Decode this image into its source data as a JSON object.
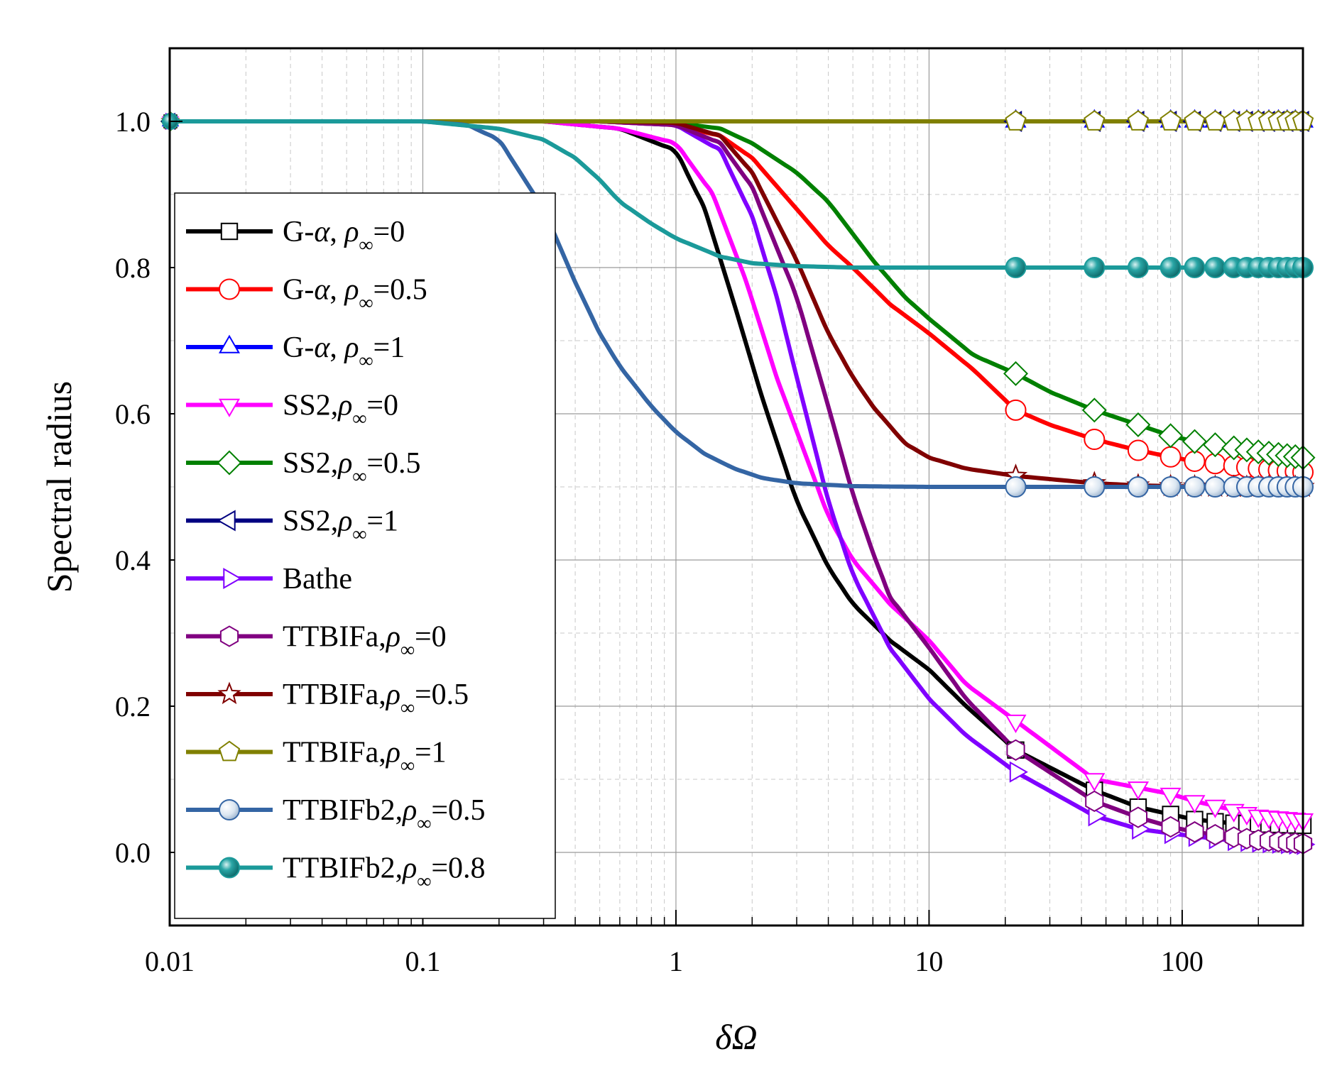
{
  "chart_data": {
    "type": "line",
    "xscale": "log",
    "xlim": [
      0.01,
      300
    ],
    "ylim": [
      -0.1,
      1.1
    ],
    "xlabel": "δΩ",
    "ylabel": "Spectral radius",
    "grid": true,
    "legend_position": "left",
    "xticks": [
      {
        "value": 0.01,
        "label": "0.01"
      },
      {
        "value": 0.1,
        "label": "0.1"
      },
      {
        "value": 1,
        "label": "1"
      },
      {
        "value": 10,
        "label": "10"
      },
      {
        "value": 100,
        "label": "100"
      }
    ],
    "yticks": [
      {
        "value": 0.0,
        "label": "0.0"
      },
      {
        "value": 0.2,
        "label": "0.2"
      },
      {
        "value": 0.4,
        "label": "0.4"
      },
      {
        "value": 0.6,
        "label": "0.6"
      },
      {
        "value": 0.8,
        "label": "0.8"
      },
      {
        "value": 1.0,
        "label": "1.0"
      }
    ],
    "series": [
      {
        "name": "G-α, ρ∞=0",
        "prefix": "G-",
        "greek": "α",
        "sep": ", ",
        "rinf": "0",
        "color": "#000000",
        "marker": "square",
        "x": [
          0.01,
          0.1,
          0.3,
          0.6,
          1,
          1.3,
          1.7,
          2.2,
          3,
          4,
          5,
          7,
          10,
          14,
          22,
          45,
          67,
          90,
          112,
          135,
          160,
          200,
          250,
          300
        ],
        "y": [
          1.0,
          1.0,
          1.0,
          0.99,
          0.96,
          0.88,
          0.75,
          0.62,
          0.48,
          0.39,
          0.34,
          0.29,
          0.25,
          0.2,
          0.14,
          0.085,
          0.062,
          0.052,
          0.045,
          0.042,
          0.04,
          0.039,
          0.038,
          0.037
        ]
      },
      {
        "name": "G-α, ρ∞=0.5",
        "prefix": "G-",
        "greek": "α",
        "sep": ", ",
        "rinf": "0.5",
        "color": "#ff0000",
        "marker": "circle",
        "x": [
          0.01,
          0.1,
          0.5,
          1,
          1.5,
          2,
          3,
          4,
          5,
          7,
          10,
          15,
          22,
          30,
          45,
          67,
          90,
          112,
          150,
          200,
          300
        ],
        "y": [
          1.0,
          1.0,
          1.0,
          0.995,
          0.98,
          0.95,
          0.88,
          0.83,
          0.8,
          0.75,
          0.71,
          0.66,
          0.605,
          0.585,
          0.565,
          0.55,
          0.541,
          0.535,
          0.53,
          0.525,
          0.52
        ]
      },
      {
        "name": "G-α, ρ∞=1",
        "prefix": "G-",
        "greek": "α",
        "sep": ", ",
        "rinf": "1",
        "color": "#0000ff",
        "marker": "triangle-up",
        "x": [
          0.01,
          22,
          45,
          67,
          90,
          112,
          135,
          160,
          180,
          200,
          220,
          240,
          260,
          280,
          300
        ],
        "y": [
          1.0,
          1.0,
          1.0,
          1.0,
          1.0,
          1.0,
          1.0,
          1.0,
          1.0,
          1.0,
          1.0,
          1.0,
          1.0,
          1.0,
          1.0
        ]
      },
      {
        "name": "SS2,ρ∞=0",
        "prefix": "SS2,",
        "greek": "",
        "sep": "",
        "rinf": "0",
        "color": "#ff00ff",
        "marker": "triangle-down",
        "x": [
          0.01,
          0.1,
          0.3,
          0.6,
          1,
          1.4,
          1.9,
          2.5,
          3.2,
          4,
          5,
          7,
          10,
          14,
          22,
          45,
          90,
          112,
          150,
          200,
          300
        ],
        "y": [
          1.0,
          1.0,
          1.0,
          0.99,
          0.97,
          0.9,
          0.78,
          0.65,
          0.55,
          0.46,
          0.4,
          0.34,
          0.29,
          0.23,
          0.18,
          0.1,
          0.08,
          0.07,
          0.06,
          0.05,
          0.045
        ]
      },
      {
        "name": "SS2,ρ∞=0.5",
        "prefix": "SS2,",
        "greek": "",
        "sep": "",
        "rinf": "0.5",
        "color": "#008000",
        "marker": "diamond",
        "x": [
          0.01,
          0.1,
          0.5,
          1,
          1.5,
          2,
          3,
          4,
          6,
          8,
          10,
          15,
          22,
          30,
          45,
          67,
          90,
          112,
          150,
          200,
          300
        ],
        "y": [
          1.0,
          1.0,
          1.0,
          0.998,
          0.99,
          0.97,
          0.93,
          0.89,
          0.81,
          0.76,
          0.73,
          0.68,
          0.655,
          0.63,
          0.605,
          0.585,
          0.57,
          0.562,
          0.555,
          0.548,
          0.54
        ]
      },
      {
        "name": "SS2,ρ∞=1",
        "prefix": "SS2,",
        "greek": "",
        "sep": "",
        "rinf": "1",
        "color": "#000080",
        "marker": "triangle-left",
        "x": [
          0.01,
          22,
          45,
          67,
          90,
          112,
          135,
          160,
          180,
          200,
          220,
          240,
          260,
          280,
          300
        ],
        "y": [
          1.0,
          1.0,
          1.0,
          1.0,
          1.0,
          1.0,
          1.0,
          1.0,
          1.0,
          1.0,
          1.0,
          1.0,
          1.0,
          1.0,
          1.0
        ]
      },
      {
        "name": "Bathe",
        "prefix": "Bathe",
        "greek": "",
        "sep": "",
        "rinf": "",
        "color": "#8000ff",
        "marker": "triangle-right",
        "x": [
          0.01,
          0.1,
          0.5,
          1,
          1.5,
          2,
          2.5,
          3,
          3.5,
          4,
          5,
          7,
          10,
          14,
          22,
          45,
          67,
          90,
          112,
          150,
          200,
          300
        ],
        "y": [
          1.0,
          1.0,
          1.0,
          0.995,
          0.96,
          0.87,
          0.76,
          0.65,
          0.56,
          0.48,
          0.38,
          0.28,
          0.21,
          0.16,
          0.11,
          0.05,
          0.032,
          0.026,
          0.022,
          0.017,
          0.014,
          0.011
        ]
      },
      {
        "name": "TTBIFa,ρ∞=0",
        "prefix": "TTBIFa,",
        "greek": "",
        "sep": "",
        "rinf": "0",
        "color": "#800080",
        "marker": "hexagon",
        "x": [
          0.01,
          0.1,
          0.5,
          1,
          1.5,
          2,
          3,
          4,
          5,
          6,
          7,
          10,
          14,
          22,
          45,
          67,
          90,
          112,
          150,
          200,
          300
        ],
        "y": [
          1.0,
          1.0,
          1.0,
          0.995,
          0.97,
          0.91,
          0.76,
          0.61,
          0.49,
          0.41,
          0.35,
          0.28,
          0.21,
          0.14,
          0.07,
          0.048,
          0.035,
          0.028,
          0.022,
          0.017,
          0.012
        ]
      },
      {
        "name": "TTBIFa,ρ∞=0.5",
        "prefix": "TTBIFa,",
        "greek": "",
        "sep": "",
        "rinf": "0.5",
        "color": "#800000",
        "marker": "star",
        "x": [
          0.01,
          0.1,
          0.5,
          1,
          1.5,
          2,
          3,
          4,
          5,
          6,
          8,
          10,
          14,
          22,
          45,
          67,
          90,
          150,
          300
        ],
        "y": [
          1.0,
          1.0,
          1.0,
          0.998,
          0.98,
          0.93,
          0.81,
          0.71,
          0.65,
          0.61,
          0.56,
          0.54,
          0.525,
          0.515,
          0.505,
          0.502,
          0.501,
          0.5,
          0.5
        ]
      },
      {
        "name": "TTBIFa,ρ∞=1",
        "prefix": "TTBIFa,",
        "greek": "",
        "sep": "",
        "rinf": "1",
        "color": "#808000",
        "marker": "pentagon",
        "x": [
          0.01,
          22,
          45,
          67,
          90,
          112,
          135,
          160,
          180,
          200,
          220,
          240,
          260,
          280,
          300
        ],
        "y": [
          1.0,
          1.0,
          1.0,
          1.0,
          1.0,
          1.0,
          1.0,
          1.0,
          1.0,
          1.0,
          1.0,
          1.0,
          1.0,
          1.0,
          1.0
        ]
      },
      {
        "name": "TTBIFb2,ρ∞=0.5",
        "prefix": "TTBIFb2,",
        "greek": "",
        "sep": "",
        "rinf": "0.5",
        "color": "#3465a4",
        "marker": "sphere-white",
        "x": [
          0.01,
          0.1,
          0.15,
          0.2,
          0.3,
          0.4,
          0.5,
          0.6,
          0.8,
          1,
          1.3,
          1.7,
          2.2,
          3,
          5,
          10,
          22,
          45,
          67,
          90,
          112,
          135,
          160,
          180,
          200,
          220,
          240,
          260,
          280,
          300
        ],
        "y": [
          1.0,
          1.0,
          0.995,
          0.975,
          0.88,
          0.78,
          0.71,
          0.665,
          0.61,
          0.575,
          0.545,
          0.525,
          0.512,
          0.505,
          0.501,
          0.5,
          0.5,
          0.5,
          0.5,
          0.5,
          0.5,
          0.5,
          0.5,
          0.5,
          0.5,
          0.5,
          0.5,
          0.5,
          0.5,
          0.5
        ]
      },
      {
        "name": "TTBIFb2,ρ∞=0.8",
        "prefix": "TTBIFb2,",
        "greek": "",
        "sep": "",
        "rinf": "0.8",
        "color": "#1b9a9a",
        "marker": "sphere-teal",
        "x": [
          0.01,
          0.1,
          0.2,
          0.3,
          0.4,
          0.5,
          0.6,
          0.8,
          1,
          1.5,
          2,
          3,
          5,
          10,
          22,
          45,
          67,
          90,
          112,
          135,
          160,
          180,
          200,
          220,
          240,
          260,
          280,
          300
        ],
        "y": [
          1.0,
          1.0,
          0.99,
          0.975,
          0.95,
          0.92,
          0.89,
          0.86,
          0.84,
          0.815,
          0.806,
          0.802,
          0.8,
          0.8,
          0.8,
          0.8,
          0.8,
          0.8,
          0.8,
          0.8,
          0.8,
          0.8,
          0.8,
          0.8,
          0.8,
          0.8,
          0.8,
          0.8
        ]
      }
    ],
    "marker_x": [
      22,
      45,
      67,
      90,
      112,
      135,
      160,
      180,
      200,
      220,
      240,
      260,
      280,
      300
    ]
  }
}
